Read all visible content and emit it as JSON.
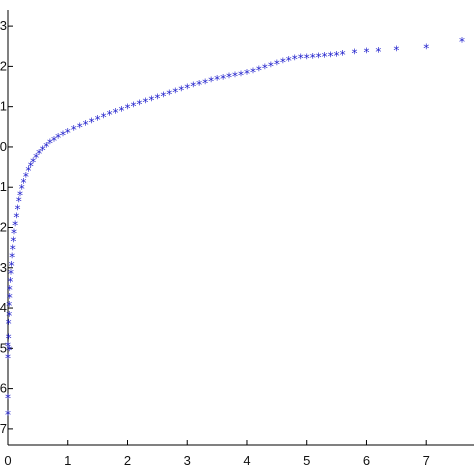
{
  "chart_data": {
    "type": "scatter",
    "title": "",
    "xlabel": "",
    "ylabel": "",
    "xlim": [
      0,
      7.8
    ],
    "ylim": [
      -7.4,
      3.4
    ],
    "x_ticks": [
      "0",
      "1",
      "2",
      "3",
      "4",
      "5",
      "6",
      "7"
    ],
    "y_ticks": [
      "-7",
      "-6",
      "-5",
      "-4",
      "-3",
      "-2",
      "-1",
      "0",
      "1",
      "2",
      "3"
    ],
    "grid": false,
    "marker": "*",
    "marker_color": "#1f1fcc",
    "series": [
      {
        "points": [
          [
            0.0,
            -6.65
          ],
          [
            0.0,
            -6.25
          ],
          [
            0.0,
            -5.25
          ],
          [
            0.02,
            -5.05
          ],
          [
            0.0,
            -4.95
          ],
          [
            0.01,
            -4.75
          ],
          [
            0.01,
            -4.4
          ],
          [
            0.02,
            -4.2
          ],
          [
            0.02,
            -3.95
          ],
          [
            0.03,
            -3.75
          ],
          [
            0.03,
            -3.55
          ],
          [
            0.04,
            -3.35
          ],
          [
            0.05,
            -3.15
          ],
          [
            0.06,
            -2.95
          ],
          [
            0.07,
            -2.75
          ],
          [
            0.08,
            -2.55
          ],
          [
            0.09,
            -2.35
          ],
          [
            0.1,
            -2.15
          ],
          [
            0.12,
            -1.95
          ],
          [
            0.14,
            -1.75
          ],
          [
            0.16,
            -1.55
          ],
          [
            0.18,
            -1.35
          ],
          [
            0.2,
            -1.2
          ],
          [
            0.23,
            -1.05
          ],
          [
            0.26,
            -0.9
          ],
          [
            0.3,
            -0.75
          ],
          [
            0.34,
            -0.6
          ],
          [
            0.38,
            -0.48
          ],
          [
            0.42,
            -0.38
          ],
          [
            0.47,
            -0.28
          ],
          [
            0.52,
            -0.18
          ],
          [
            0.58,
            -0.09
          ],
          [
            0.64,
            0.0
          ],
          [
            0.7,
            0.08
          ],
          [
            0.77,
            0.15
          ],
          [
            0.84,
            0.22
          ],
          [
            0.92,
            0.28
          ],
          [
            1.0,
            0.35
          ],
          [
            1.1,
            0.42
          ],
          [
            1.2,
            0.48
          ],
          [
            1.3,
            0.55
          ],
          [
            1.4,
            0.61
          ],
          [
            1.5,
            0.67
          ],
          [
            1.6,
            0.73
          ],
          [
            1.7,
            0.79
          ],
          [
            1.8,
            0.84
          ],
          [
            1.9,
            0.89
          ],
          [
            2.0,
            0.95
          ],
          [
            2.1,
            1.0
          ],
          [
            2.2,
            1.05
          ],
          [
            2.3,
            1.1
          ],
          [
            2.4,
            1.15
          ],
          [
            2.5,
            1.2
          ],
          [
            2.6,
            1.25
          ],
          [
            2.7,
            1.3
          ],
          [
            2.8,
            1.35
          ],
          [
            2.9,
            1.4
          ],
          [
            3.0,
            1.45
          ],
          [
            3.1,
            1.5
          ],
          [
            3.2,
            1.54
          ],
          [
            3.3,
            1.58
          ],
          [
            3.4,
            1.62
          ],
          [
            3.5,
            1.66
          ],
          [
            3.6,
            1.69
          ],
          [
            3.7,
            1.72
          ],
          [
            3.8,
            1.75
          ],
          [
            3.9,
            1.78
          ],
          [
            4.0,
            1.81
          ],
          [
            4.1,
            1.85
          ],
          [
            4.2,
            1.9
          ],
          [
            4.3,
            1.95
          ],
          [
            4.4,
            2.0
          ],
          [
            4.5,
            2.05
          ],
          [
            4.6,
            2.1
          ],
          [
            4.7,
            2.14
          ],
          [
            4.8,
            2.17
          ],
          [
            4.9,
            2.19
          ],
          [
            5.0,
            2.2
          ],
          [
            5.1,
            2.21
          ],
          [
            5.2,
            2.22
          ],
          [
            5.3,
            2.23
          ],
          [
            5.4,
            2.24
          ],
          [
            5.5,
            2.26
          ],
          [
            5.6,
            2.28
          ],
          [
            5.8,
            2.32
          ],
          [
            6.0,
            2.35
          ],
          [
            6.2,
            2.36
          ],
          [
            6.5,
            2.4
          ],
          [
            7.0,
            2.45
          ],
          [
            7.6,
            2.6
          ]
        ]
      }
    ]
  }
}
